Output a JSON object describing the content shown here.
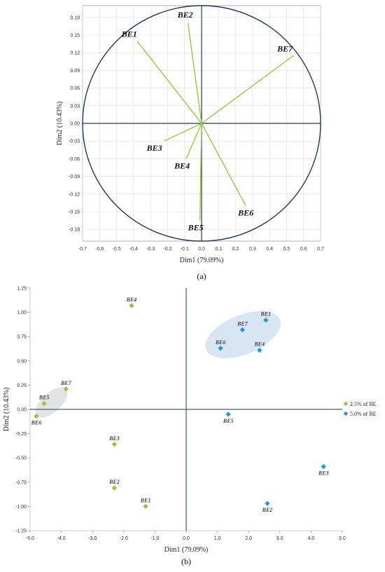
{
  "chart_data": [
    {
      "panel": "(a)",
      "type": "scatter",
      "subtype": "correlation circle (loadings)",
      "xlabel": "Dim1 (79.09%)",
      "ylabel": "Dim2 (10.43%)",
      "xlim": [
        -0.7,
        0.7
      ],
      "ylim": [
        -0.2,
        0.2
      ],
      "xticks": [
        "-0.7",
        "-0.6",
        "-0.5",
        "-0.4",
        "-0.3",
        "-0.2",
        "-0.1",
        "0.0",
        "0.1",
        "0.2",
        "0.3",
        "0.4",
        "0.5",
        "0.6",
        "0.7"
      ],
      "yticks": [
        "0.18",
        "0.15",
        "0.12",
        "0.09",
        "0.06",
        "0.03",
        "0.00",
        "-0.03",
        "-0.06",
        "-0.09",
        "-0.12",
        "-0.15",
        "-0.18"
      ],
      "grid": true,
      "vectors": [
        {
          "label": "BE1",
          "x": -0.38,
          "y": 0.14
        },
        {
          "label": "BE2",
          "x": -0.08,
          "y": 0.17
        },
        {
          "label": "BE7",
          "x": 0.54,
          "y": 0.115
        },
        {
          "label": "BE3",
          "x": -0.22,
          "y": -0.03
        },
        {
          "label": "BE4",
          "x": -0.09,
          "y": -0.06
        },
        {
          "label": "BE5",
          "x": -0.01,
          "y": -0.165
        },
        {
          "label": "BE6",
          "x": 0.26,
          "y": -0.14
        }
      ],
      "colors": {
        "vector": "#8cc63f",
        "circle": "#1f3a5f"
      }
    },
    {
      "panel": "(b)",
      "type": "scatter",
      "xlabel": "Dim1 (79.09%)",
      "ylabel": "Dim2 (10.43%)",
      "xlim": [
        -5.0,
        5.0
      ],
      "ylim": [
        -1.25,
        1.25
      ],
      "xticks": [
        "-5.0",
        "-4.0",
        "-3.0",
        "-2.0",
        "-1.0",
        "0.0",
        "1.0",
        "2.0",
        "3.0",
        "4.0",
        "5.0"
      ],
      "yticks": [
        "1.25",
        "1.00",
        "0.75",
        "0.50",
        "0.25",
        "0.00",
        "-0.25",
        "-0.50",
        "-0.75",
        "-1.00",
        "-1.25"
      ],
      "grid": false,
      "legend_position": "right",
      "series": [
        {
          "name": "2.5% of BE",
          "color": "#8cc63f",
          "points": [
            {
              "label": "BE4",
              "x": -1.75,
              "y": 1.07
            },
            {
              "label": "BE7",
              "x": -3.85,
              "y": 0.21
            },
            {
              "label": "BE5",
              "x": -4.55,
              "y": 0.06
            },
            {
              "label": "BE6",
              "x": -4.8,
              "y": -0.07
            },
            {
              "label": "BE3",
              "x": -2.3,
              "y": -0.36
            },
            {
              "label": "BE2",
              "x": -2.3,
              "y": -0.81
            },
            {
              "label": "BE1",
              "x": -1.3,
              "y": -1.0
            }
          ]
        },
        {
          "name": "5.0% of BE",
          "color": "#1f9ad6",
          "points": [
            {
              "label": "BE1",
              "x": 2.55,
              "y": 0.92
            },
            {
              "label": "BE7",
              "x": 1.8,
              "y": 0.82
            },
            {
              "label": "BE6",
              "x": 1.1,
              "y": 0.63
            },
            {
              "label": "BE4",
              "x": 2.35,
              "y": 0.61
            },
            {
              "label": "BE5",
              "x": 1.35,
              "y": -0.05
            },
            {
              "label": "BE3",
              "x": 4.4,
              "y": -0.59
            },
            {
              "label": "BE2",
              "x": 2.6,
              "y": -0.97
            }
          ]
        }
      ]
    }
  ],
  "captions": {
    "a": "(a)",
    "b": "(b)"
  }
}
